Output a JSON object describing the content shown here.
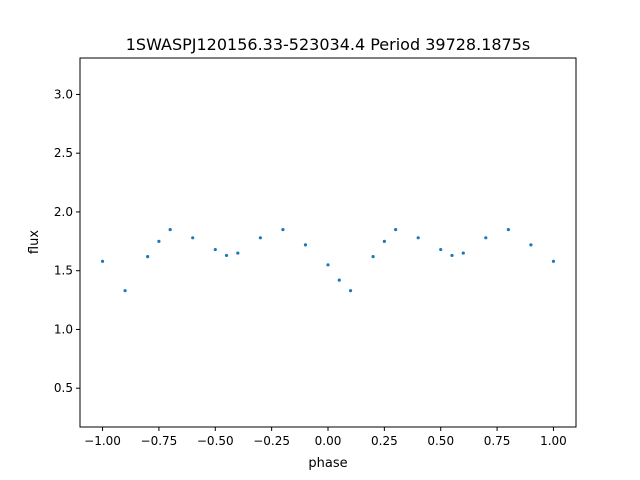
{
  "chart_data": {
    "type": "scatter",
    "title": "1SWASPJ120156.33-523034.4 Period 39728.1875s",
    "xlabel": "phase",
    "ylabel": "flux",
    "xlim": [
      -1.1,
      1.1
    ],
    "ylim": [
      0.17,
      3.31
    ],
    "x_ticks": [
      -1.0,
      -0.75,
      -0.5,
      -0.25,
      0.0,
      0.25,
      0.5,
      0.75,
      1.0
    ],
    "x_tick_labels": [
      "−1.00",
      "−0.75",
      "−0.50",
      "−0.25",
      "0.00",
      "0.25",
      "0.50",
      "0.75",
      "1.00"
    ],
    "y_ticks": [
      0.5,
      1.0,
      1.5,
      2.0,
      2.5,
      3.0
    ],
    "y_tick_labels": [
      "0.5",
      "1.0",
      "1.5",
      "2.0",
      "2.5",
      "3.0"
    ],
    "marker_color": "#1f77b4",
    "grid": false,
    "series": [
      {
        "name": "",
        "x": [
          -1.0,
          -0.9,
          -0.8,
          -0.75,
          -0.7,
          -0.6,
          -0.5,
          -0.45,
          -0.4,
          -0.3,
          -0.2,
          -0.1,
          0.0,
          0.05,
          0.1,
          0.2,
          0.25,
          0.3,
          0.4,
          0.5,
          0.55,
          0.6,
          0.7,
          0.8,
          0.9,
          1.0
        ],
        "y": [
          1.58,
          1.33,
          1.62,
          1.75,
          1.85,
          1.78,
          1.68,
          1.63,
          1.65,
          1.78,
          1.85,
          1.72,
          1.55,
          1.42,
          1.33,
          1.62,
          1.75,
          1.85,
          1.78,
          1.68,
          1.63,
          1.65,
          1.78,
          1.85,
          1.72,
          1.58
        ]
      }
    ]
  }
}
